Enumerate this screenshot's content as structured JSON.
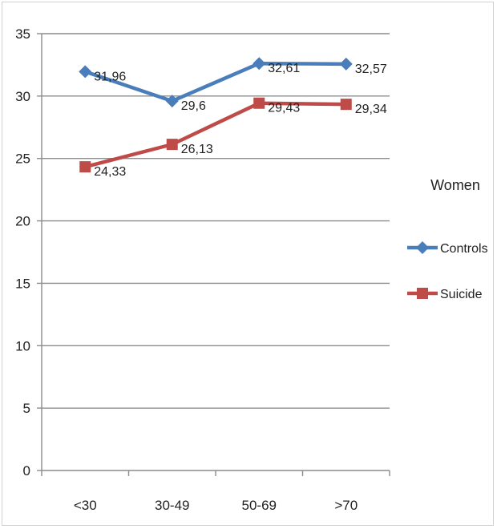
{
  "chart_data": {
    "type": "line",
    "categories": [
      "<30",
      "30-49",
      "50-69",
      ">70"
    ],
    "ylim": [
      0,
      35
    ],
    "yticks": [
      0,
      5,
      10,
      15,
      20,
      25,
      30,
      35
    ],
    "grid": true,
    "legend_placement": "right",
    "legend_title": "Women",
    "series": [
      {
        "name": "Controls",
        "values": [
          31.96,
          29.6,
          32.61,
          32.57
        ],
        "labels": [
          "31,96",
          "29,6",
          "32,61",
          "32,57"
        ],
        "color": "#4a7ebb",
        "marker": "diamond"
      },
      {
        "name": "Suicide",
        "values": [
          24.33,
          26.13,
          29.43,
          29.34
        ],
        "labels": [
          "24,33",
          "26,13",
          "29,43",
          "29,34"
        ],
        "color": "#be4b48",
        "marker": "square"
      }
    ]
  }
}
